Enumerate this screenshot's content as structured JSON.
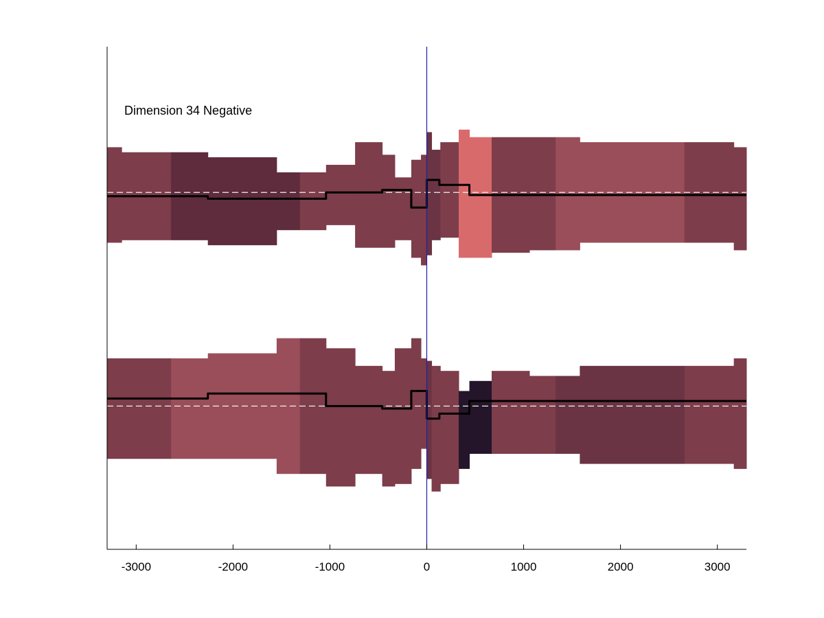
{
  "chart_data": {
    "type": "area",
    "title": "",
    "annotation": "Dimension 34 Negative",
    "xlabel": "",
    "ylabel": "",
    "xlim": [
      -3300,
      3300
    ],
    "x_ticks": [
      -3000,
      -2000,
      -1000,
      0,
      1000,
      2000,
      3000
    ],
    "x_tick_labels": [
      "-3000",
      "-2000",
      "-1000",
      "0",
      "1000",
      "2000",
      "3000"
    ],
    "ylim": [
      -1,
      1
    ],
    "grid": false,
    "vertical_marker_x": 0,
    "colors": {
      "marker": "#2020a0",
      "mean_line": "#000000",
      "baseline": "#f0f0f0"
    },
    "tracks": [
      {
        "baseline": 0.42,
        "bands": [
          {
            "x0": -3300,
            "x1": -3150,
            "low": 0.22,
            "high": 0.6,
            "color": "#7d3d4b"
          },
          {
            "x0": -3150,
            "x1": -2640,
            "low": 0.23,
            "high": 0.58,
            "color": "#7d3d4b"
          },
          {
            "x0": -2640,
            "x1": -2260,
            "low": 0.23,
            "high": 0.58,
            "color": "#5e2c3d"
          },
          {
            "x0": -2260,
            "x1": -1550,
            "low": 0.21,
            "high": 0.56,
            "color": "#5e2c3d"
          },
          {
            "x0": -1550,
            "x1": -1310,
            "low": 0.27,
            "high": 0.5,
            "color": "#5e2c3d"
          },
          {
            "x0": -1310,
            "x1": -1040,
            "low": 0.27,
            "high": 0.5,
            "color": "#7d3d4b"
          },
          {
            "x0": -1040,
            "x1": -740,
            "low": 0.29,
            "high": 0.53,
            "color": "#7d3d4b"
          },
          {
            "x0": -740,
            "x1": -460,
            "low": 0.2,
            "high": 0.62,
            "color": "#7d3d4b"
          },
          {
            "x0": -460,
            "x1": -330,
            "low": 0.2,
            "high": 0.57,
            "color": "#7d3d4b"
          },
          {
            "x0": -330,
            "x1": -160,
            "low": 0.23,
            "high": 0.48,
            "color": "#7d3d4b"
          },
          {
            "x0": -160,
            "x1": -60,
            "low": 0.16,
            "high": 0.55,
            "color": "#7d3d4b"
          },
          {
            "x0": -60,
            "x1": 0,
            "low": 0.13,
            "high": 0.57,
            "color": "#7d3d4b"
          },
          {
            "x0": 0,
            "x1": 50,
            "low": 0.17,
            "high": 0.66,
            "color": "#6a3445"
          },
          {
            "x0": 50,
            "x1": 140,
            "low": 0.23,
            "high": 0.59,
            "color": "#6a3445"
          },
          {
            "x0": 140,
            "x1": 330,
            "low": 0.24,
            "high": 0.62,
            "color": "#7d3d4b"
          },
          {
            "x0": 330,
            "x1": 440,
            "low": 0.16,
            "high": 0.67,
            "color": "#d96a6c"
          },
          {
            "x0": 440,
            "x1": 670,
            "low": 0.16,
            "high": 0.64,
            "color": "#d96a6c"
          },
          {
            "x0": 670,
            "x1": 1060,
            "low": 0.18,
            "high": 0.64,
            "color": "#7d3d4b"
          },
          {
            "x0": 1060,
            "x1": 1330,
            "low": 0.19,
            "high": 0.64,
            "color": "#7d3d4b"
          },
          {
            "x0": 1330,
            "x1": 1580,
            "low": 0.19,
            "high": 0.64,
            "color": "#9a4e5a"
          },
          {
            "x0": 1580,
            "x1": 2660,
            "low": 0.22,
            "high": 0.62,
            "color": "#9a4e5a"
          },
          {
            "x0": 2660,
            "x1": 3170,
            "low": 0.22,
            "high": 0.62,
            "color": "#7d3d4b"
          },
          {
            "x0": 3170,
            "x1": 3300,
            "low": 0.19,
            "high": 0.6,
            "color": "#7d3d4b"
          }
        ],
        "mean": {
          "x": [
            -3300,
            -2260,
            -2260,
            -1040,
            -1040,
            -460,
            -460,
            -160,
            -160,
            0,
            0,
            130,
            130,
            440,
            440,
            1060,
            2260,
            3300
          ],
          "y": [
            0.405,
            0.405,
            0.395,
            0.395,
            0.42,
            0.42,
            0.43,
            0.43,
            0.36,
            0.36,
            0.47,
            0.47,
            0.45,
            0.45,
            0.41,
            0.41,
            0.41,
            0.41
          ]
        }
      },
      {
        "baseline": -0.43,
        "bands": [
          {
            "x0": -3300,
            "x1": -2640,
            "low": -0.64,
            "high": -0.24,
            "color": "#7d3d4b"
          },
          {
            "x0": -2640,
            "x1": -2260,
            "low": -0.64,
            "high": -0.24,
            "color": "#9a4e5a"
          },
          {
            "x0": -2260,
            "x1": -1550,
            "low": -0.64,
            "high": -0.22,
            "color": "#9a4e5a"
          },
          {
            "x0": -1550,
            "x1": -1310,
            "low": -0.7,
            "high": -0.16,
            "color": "#9a4e5a"
          },
          {
            "x0": -1310,
            "x1": -1040,
            "low": -0.7,
            "high": -0.16,
            "color": "#7d3d4b"
          },
          {
            "x0": -1040,
            "x1": -740,
            "low": -0.75,
            "high": -0.2,
            "color": "#7d3d4b"
          },
          {
            "x0": -740,
            "x1": -460,
            "low": -0.7,
            "high": -0.27,
            "color": "#7d3d4b"
          },
          {
            "x0": -460,
            "x1": -330,
            "low": -0.75,
            "high": -0.29,
            "color": "#7d3d4b"
          },
          {
            "x0": -330,
            "x1": -160,
            "low": -0.74,
            "high": -0.2,
            "color": "#7d3d4b"
          },
          {
            "x0": -160,
            "x1": -60,
            "low": -0.68,
            "high": -0.16,
            "color": "#7d3d4b"
          },
          {
            "x0": -60,
            "x1": 0,
            "low": -0.6,
            "high": -0.24,
            "color": "#7d3d4b"
          },
          {
            "x0": 0,
            "x1": 50,
            "low": -0.72,
            "high": -0.25,
            "color": "#6a3445"
          },
          {
            "x0": 50,
            "x1": 140,
            "low": -0.77,
            "high": -0.27,
            "color": "#7d3d4b"
          },
          {
            "x0": 140,
            "x1": 330,
            "low": -0.74,
            "high": -0.29,
            "color": "#7d3d4b"
          },
          {
            "x0": 330,
            "x1": 440,
            "low": -0.68,
            "high": -0.37,
            "color": "#24152a"
          },
          {
            "x0": 440,
            "x1": 670,
            "low": -0.62,
            "high": -0.33,
            "color": "#24152a"
          },
          {
            "x0": 670,
            "x1": 1060,
            "low": -0.62,
            "high": -0.29,
            "color": "#7d3d4b"
          },
          {
            "x0": 1060,
            "x1": 1330,
            "low": -0.62,
            "high": -0.31,
            "color": "#7d3d4b"
          },
          {
            "x0": 1330,
            "x1": 1580,
            "low": -0.62,
            "high": -0.31,
            "color": "#6a3445"
          },
          {
            "x0": 1580,
            "x1": 2660,
            "low": -0.66,
            "high": -0.27,
            "color": "#6a3445"
          },
          {
            "x0": 2660,
            "x1": 3170,
            "low": -0.66,
            "high": -0.27,
            "color": "#7d3d4b"
          },
          {
            "x0": 3170,
            "x1": 3300,
            "low": -0.68,
            "high": -0.24,
            "color": "#7d3d4b"
          }
        ],
        "mean": {
          "x": [
            -3300,
            -2260,
            -2260,
            -1040,
            -1040,
            -460,
            -460,
            -160,
            -160,
            0,
            0,
            130,
            130,
            440,
            440,
            1060,
            2260,
            3300
          ],
          "y": [
            -0.4,
            -0.4,
            -0.38,
            -0.38,
            -0.43,
            -0.43,
            -0.44,
            -0.44,
            -0.37,
            -0.37,
            -0.48,
            -0.48,
            -0.46,
            -0.46,
            -0.41,
            -0.41,
            -0.41,
            -0.41
          ]
        }
      }
    ]
  }
}
